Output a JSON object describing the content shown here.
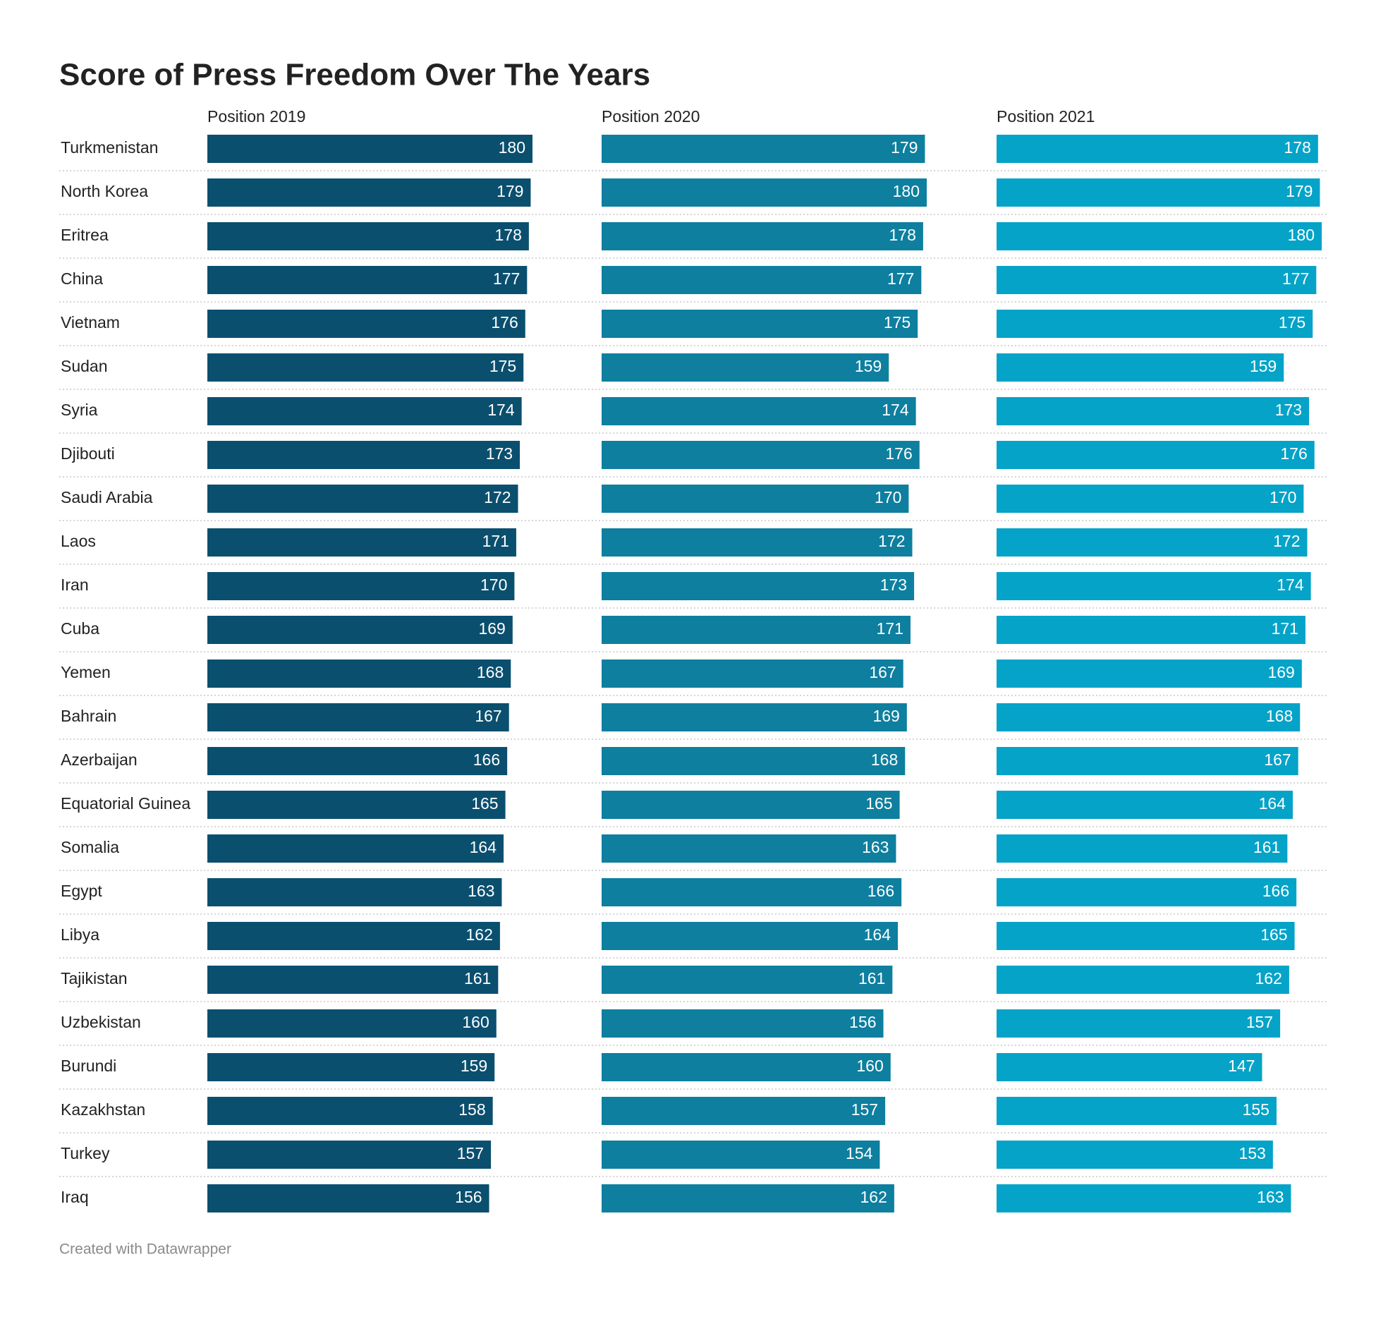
{
  "chart_data": {
    "type": "bar",
    "orientation": "horizontal",
    "title": "Score of Press Freedom Over The Years",
    "credit": "Created with Datawrapper",
    "categories": [
      "Turkmenistan",
      "North Korea",
      "Eritrea",
      "China",
      "Vietnam",
      "Sudan",
      "Syria",
      "Djibouti",
      "Saudi Arabia",
      "Laos",
      "Iran",
      "Cuba",
      "Yemen",
      "Bahrain",
      "Azerbaijan",
      "Equatorial Guinea",
      "Somalia",
      "Egypt",
      "Libya",
      "Tajikistan",
      "Uzbekistan",
      "Burundi",
      "Kazakhstan",
      "Turkey",
      "Iraq"
    ],
    "xlim": [
      0,
      180
    ],
    "series": [
      {
        "name": "Position 2019",
        "color": "#0b4f6f",
        "values": [
          180,
          179,
          178,
          177,
          176,
          175,
          174,
          173,
          172,
          171,
          170,
          169,
          168,
          167,
          166,
          165,
          164,
          163,
          162,
          161,
          160,
          159,
          158,
          157,
          156
        ]
      },
      {
        "name": "Position 2020",
        "color": "#0e7f9f",
        "values": [
          179,
          180,
          178,
          177,
          175,
          159,
          174,
          176,
          170,
          172,
          173,
          171,
          167,
          169,
          168,
          165,
          163,
          166,
          164,
          161,
          156,
          160,
          157,
          154,
          162
        ]
      },
      {
        "name": "Position 2021",
        "color": "#05a3c8",
        "values": [
          178,
          179,
          180,
          177,
          175,
          159,
          173,
          176,
          170,
          172,
          174,
          171,
          169,
          168,
          167,
          164,
          161,
          166,
          165,
          162,
          157,
          147,
          155,
          153,
          163
        ]
      }
    ]
  }
}
